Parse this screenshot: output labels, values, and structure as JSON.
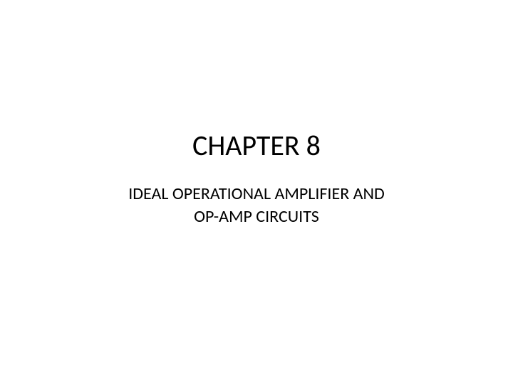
{
  "slide": {
    "title": "CHAPTER 8",
    "subtitle_line1": "IDEAL OPERATIONAL AMPLIFIER AND",
    "subtitle_line2": "OP-AMP CIRCUITS",
    "background_color": "#ffffff",
    "text_color": "#000000",
    "title_fontsize": 40,
    "subtitle_fontsize": 24,
    "font_family": "Calibri"
  }
}
